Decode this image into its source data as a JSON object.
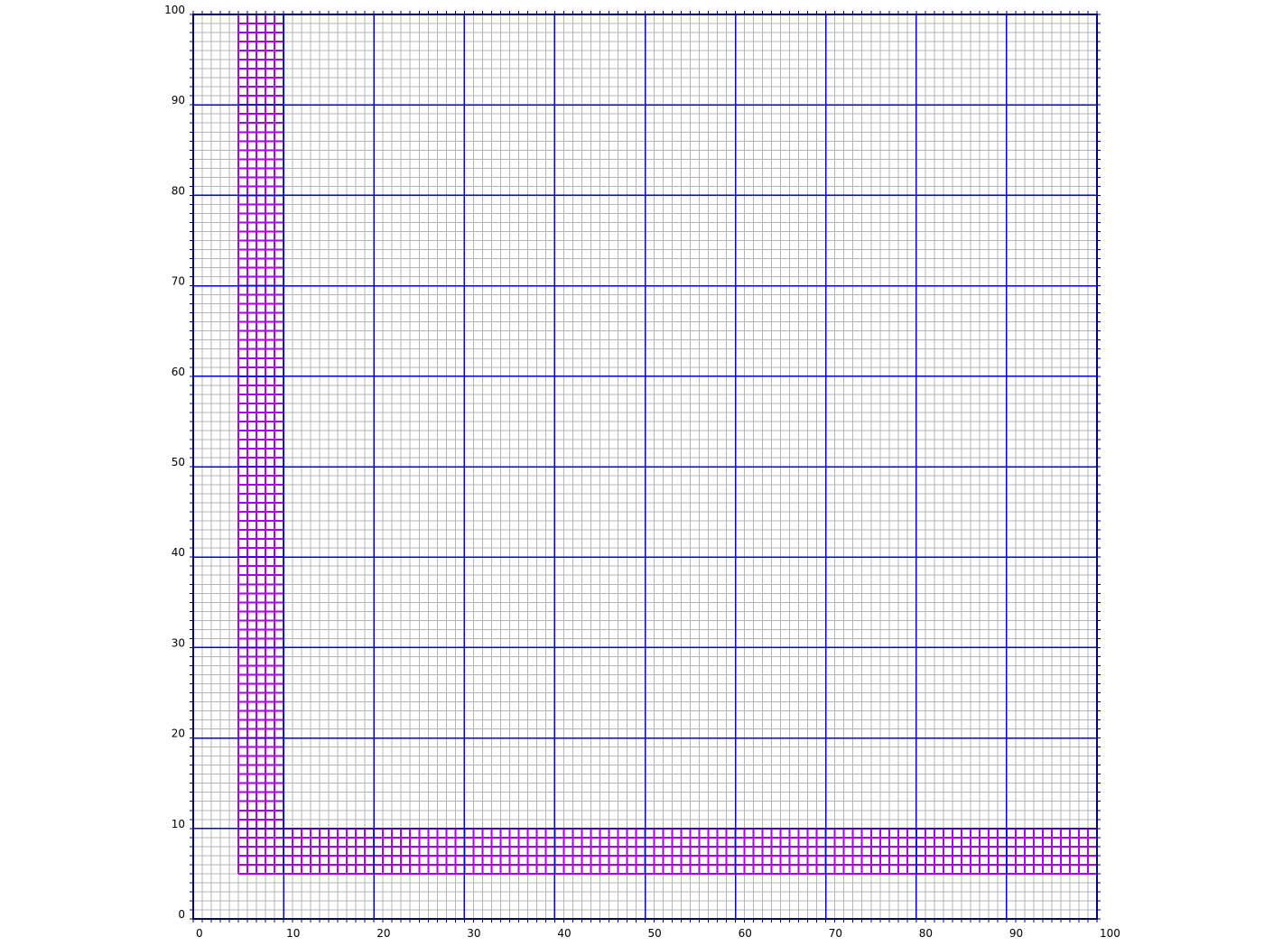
{
  "diagram": {
    "x_range": [
      0,
      100
    ],
    "y_range": [
      0,
      100
    ],
    "minor_step": 1,
    "major_step": 10,
    "x_tick_labels": [
      "0",
      "10",
      "20",
      "30",
      "40",
      "50",
      "60",
      "70",
      "80",
      "90",
      "100"
    ],
    "y_tick_labels": [
      "0",
      "10",
      "20",
      "30",
      "40",
      "50",
      "60",
      "70",
      "80",
      "90",
      "100"
    ],
    "colors": {
      "background": "#ffffff",
      "minor_grid": "#b4b4b4",
      "major_grid": "#0000dd",
      "frame": "#000080",
      "highlight": "#aa00ee"
    },
    "highlighted_regions": [
      {
        "name": "vertical-band",
        "x_range": [
          5,
          10
        ],
        "y_range": [
          5,
          100
        ],
        "cell_size": 1
      },
      {
        "name": "horizontal-band",
        "x_range": [
          5,
          100
        ],
        "y_range": [
          5,
          10
        ],
        "cell_size": 1
      }
    ]
  }
}
